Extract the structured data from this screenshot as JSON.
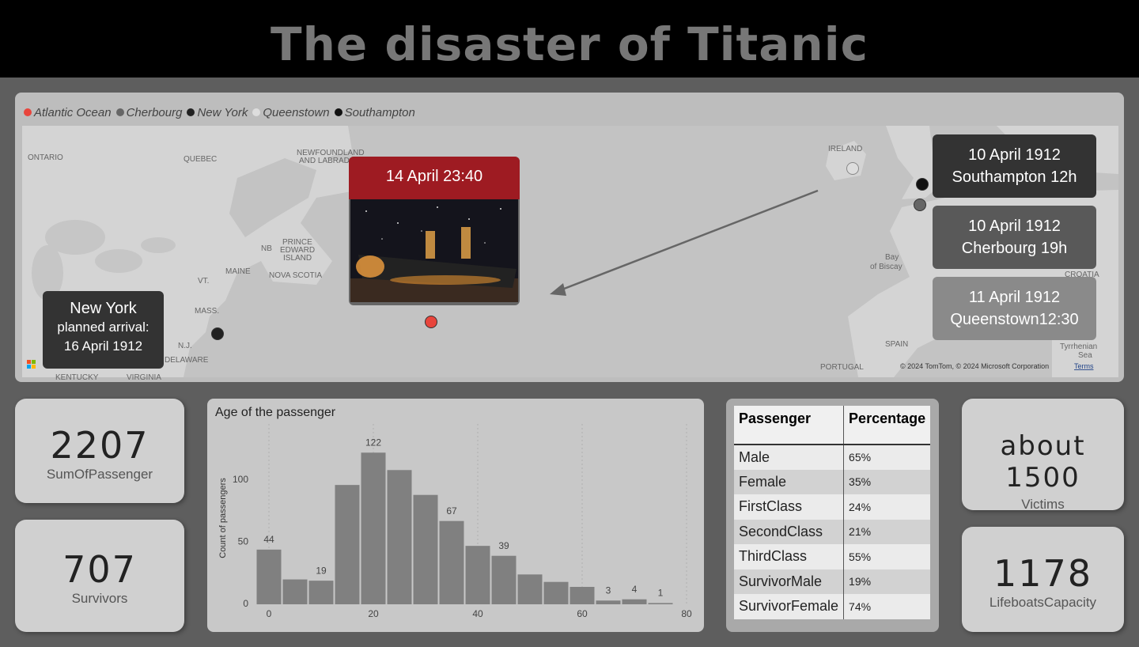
{
  "header": {
    "title": "The disaster of Titanic"
  },
  "map": {
    "legend": [
      {
        "name": "Atlantic Ocean",
        "color": "#e8453c"
      },
      {
        "name": "Cherbourg",
        "color": "#666666"
      },
      {
        "name": "New York",
        "color": "#222222"
      },
      {
        "name": "Queenstown",
        "color": "#dddddd"
      },
      {
        "name": "Southampton",
        "color": "#111111"
      }
    ],
    "place_labels": [
      "ONTARIO",
      "QUEBEC",
      "NEWFOUNDLAND",
      "AND LABRADOR",
      "NB",
      "PRINCE",
      "EDWARD",
      "ISLAND",
      "MAINE",
      "NOVA SCOTIA",
      "VT.",
      "MASS.",
      "N.J.",
      "DELAWARE",
      "KENTUCKY",
      "VIRGINIA",
      "IRELAND",
      "Bay",
      "of Biscay",
      "SPAIN",
      "PORTUGAL",
      "CROATIA",
      "Tyrrhenian",
      "Sea"
    ],
    "sinking": {
      "time": "14 April 23:40"
    },
    "new_york": {
      "title": "New York",
      "line1": "planned arrival:",
      "line2": "16 April 1912"
    },
    "southampton": {
      "date": "10 April 1912",
      "text": "Southampton 12h"
    },
    "cherbourg": {
      "date": "10 April 1912",
      "text": "Cherbourg 19h"
    },
    "queenstown": {
      "date": "11 April 1912",
      "text": "Queenstown12:30"
    },
    "attribution": "© 2024 TomTom, © 2024 Microsoft Corporation",
    "terms": "Terms"
  },
  "cards": [
    {
      "value": 2207,
      "label": "SumOfPassenger"
    },
    {
      "value": 707,
      "label": "Survivors"
    },
    {
      "value": "about 1500",
      "label": "Victims"
    },
    {
      "value": 1178,
      "label": "LifeboatsCapacity"
    }
  ],
  "table": {
    "headers": [
      "Passenger",
      "Percentage"
    ],
    "rows": [
      [
        "Male",
        "65%"
      ],
      [
        "Female",
        "35%"
      ],
      [
        "FirstClass",
        "24%"
      ],
      [
        "SecondClass",
        "21%"
      ],
      [
        "ThirdClass",
        "55%"
      ],
      [
        "SurvivorMale",
        "19%"
      ],
      [
        "SurvivorFemale",
        "74%"
      ]
    ]
  },
  "chart_data": {
    "type": "histogram",
    "title": "Age of the passenger",
    "y_label": "Count of passengers",
    "bins": [
      -2.5,
      2.5,
      7.5,
      12.5,
      17.5,
      22.5,
      27.5,
      32.5,
      37.5,
      42.5,
      47.5,
      52.5,
      57.5,
      62.5,
      67.5,
      72.5,
      77.5
    ],
    "values": [
      44,
      20,
      19,
      96,
      122,
      108,
      88,
      67,
      47,
      39,
      24,
      18,
      14,
      3,
      4,
      1
    ],
    "value_labels": [
      "44",
      null,
      "19",
      null,
      "122",
      null,
      null,
      "67",
      null,
      "39",
      null,
      null,
      null,
      "3",
      "4",
      "1"
    ],
    "color": "#808080",
    "xlim": [
      -2.5,
      80
    ],
    "xticks": [
      0,
      20,
      40,
      60,
      80
    ],
    "ylim": [
      0,
      140
    ],
    "yticks": [
      0,
      50,
      100
    ],
    "grid": true
  }
}
